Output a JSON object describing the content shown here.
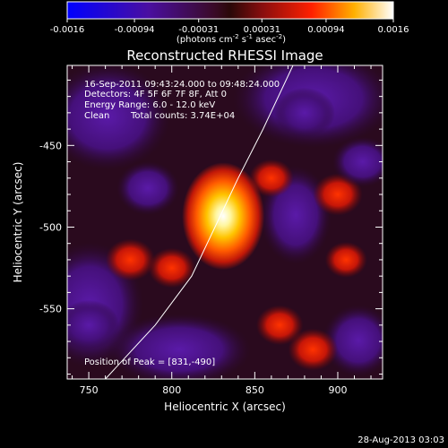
{
  "chart_data": {
    "type": "heatmap",
    "title": "Reconstructed RHESSI Image",
    "xlabel": "Heliocentric X (arcsec)",
    "ylabel": "Heliocentric Y (arcsec)",
    "xlim": [
      737,
      927
    ],
    "ylim": [
      -593,
      -401
    ],
    "x_ticks": [
      750,
      800,
      850,
      900
    ],
    "y_ticks": [
      -450,
      -500,
      -550
    ],
    "colorbar": {
      "ticks": [
        "-0.0016",
        "-0.00094",
        "-0.00031",
        "0.00031",
        "0.00094",
        "0.0016"
      ],
      "range": [
        -0.0016,
        0.0016
      ],
      "unit_parts": [
        "(photons cm",
        "-2",
        " s",
        "-1",
        " asec",
        "-2",
        ")"
      ],
      "colormap": "blue-purple-red-yellow-white"
    },
    "annotations": [
      "16-Sep-2011 09:43:24.000 to 09:48:24.000",
      "Detectors: 4F 5F 6F 7F 8F, Att 0",
      "Energy Range: 6.0 - 12.0 keV",
      "Clean",
      "Total counts: 3.74E+04"
    ],
    "peak_label": "Position of Peak = [831,-490]",
    "peak": {
      "x": 831,
      "y": -490,
      "value": 0.0016
    },
    "secondary_sources": [
      {
        "x": 775,
        "y": -520,
        "value": 0.0007
      },
      {
        "x": 800,
        "y": -525,
        "value": 0.0006
      },
      {
        "x": 860,
        "y": -470,
        "value": 0.0005
      },
      {
        "x": 865,
        "y": -560,
        "value": 0.0006
      },
      {
        "x": 900,
        "y": -480,
        "value": 0.0007
      },
      {
        "x": 885,
        "y": -575,
        "value": 0.0007
      },
      {
        "x": 905,
        "y": -520,
        "value": 0.0004
      }
    ],
    "negative_sources": [
      {
        "x": 750,
        "y": -560,
        "value": -0.0004
      },
      {
        "x": 880,
        "y": -430,
        "value": -0.0004
      },
      {
        "x": 915,
        "y": -460,
        "value": -0.0003
      }
    ],
    "limb_curve": [
      [
        760,
        -593
      ],
      [
        790,
        -560
      ],
      [
        812,
        -530
      ],
      [
        826,
        -500
      ],
      [
        840,
        -470
      ],
      [
        855,
        -440
      ],
      [
        873,
        -401
      ]
    ],
    "footer_date": "28-Aug-2013 03:03"
  }
}
